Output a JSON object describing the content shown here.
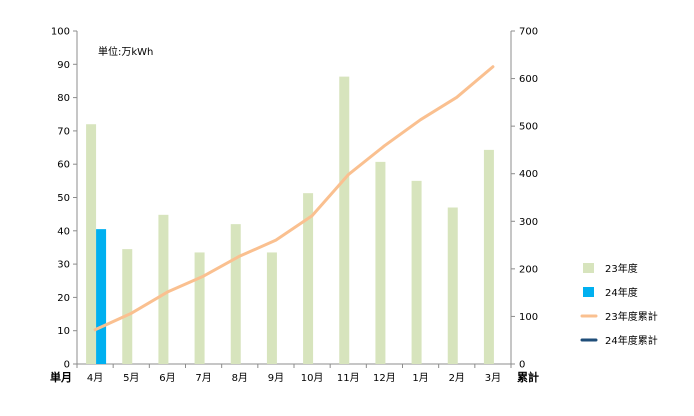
{
  "chart_data": {
    "type": "bar-line-combo",
    "title": "",
    "unit_label": "単位:万kWh",
    "categories": [
      "4月",
      "5月",
      "6月",
      "7月",
      "8月",
      "9月",
      "10月",
      "11月",
      "12月",
      "1月",
      "2月",
      "3月"
    ],
    "left_axis": {
      "label": "単月",
      "min": 0,
      "max": 100,
      "step": 10
    },
    "right_axis": {
      "label": "累計",
      "min": 0,
      "max": 700,
      "step": 100
    },
    "grid": false,
    "legend_position": "right",
    "series": [
      {
        "name": "23年度",
        "type": "bar",
        "axis": "left",
        "color": "#d7e4bd",
        "values": [
          72,
          34.5,
          44.8,
          33.5,
          42,
          33.5,
          51.3,
          86.3,
          60.7,
          55,
          47,
          64.3
        ]
      },
      {
        "name": "24年度",
        "type": "bar",
        "axis": "left",
        "color": "#00b0f0",
        "values": [
          40.5,
          null,
          null,
          null,
          null,
          null,
          null,
          null,
          null,
          null,
          null,
          null
        ]
      },
      {
        "name": "23年度累計",
        "type": "line",
        "axis": "right",
        "color": "#fac090",
        "values": [
          72,
          106.5,
          151.3,
          184.8,
          226.8,
          260.3,
          311.6,
          397.9,
          458.6,
          513.6,
          560.6,
          624.9
        ]
      },
      {
        "name": "24年度累計",
        "type": "line",
        "axis": "right",
        "color": "#1f4e79",
        "values": [
          null,
          null,
          null,
          null,
          null,
          null,
          null,
          null,
          null,
          null,
          null,
          null
        ]
      }
    ]
  }
}
